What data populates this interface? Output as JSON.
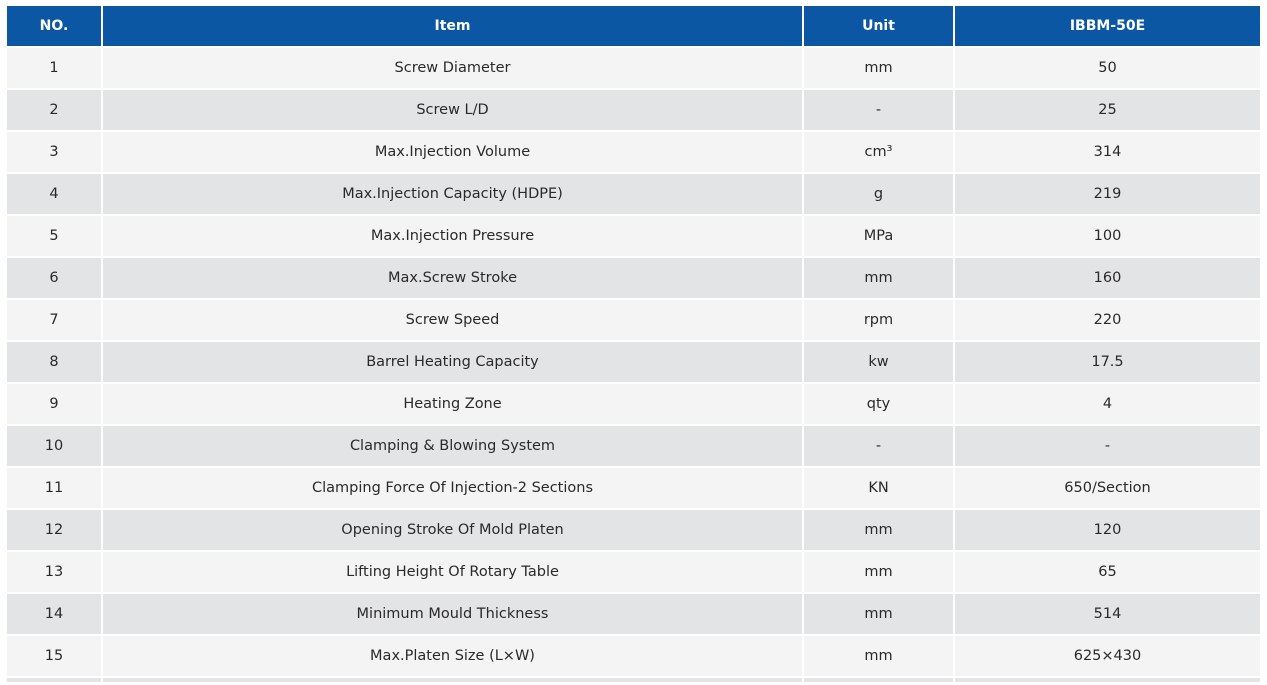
{
  "table": {
    "headers": [
      "NO.",
      "Item",
      "Unit",
      "IBBM-50E"
    ],
    "rows": [
      [
        "1",
        "Screw Diameter",
        "mm",
        "50"
      ],
      [
        "2",
        "Screw L/D",
        "-",
        "25"
      ],
      [
        "3",
        "Max.Injection Volume",
        "cm³",
        "314"
      ],
      [
        "4",
        "Max.Injection Capacity (HDPE)",
        "g",
        "219"
      ],
      [
        "5",
        "Max.Injection Pressure",
        "MPa",
        "100"
      ],
      [
        "6",
        "Max.Screw Stroke",
        "mm",
        "160"
      ],
      [
        "7",
        "Screw Speed",
        "rpm",
        "220"
      ],
      [
        "8",
        "Barrel Heating Capacity",
        "kw",
        "17.5"
      ],
      [
        "9",
        "Heating Zone",
        "qty",
        "4"
      ],
      [
        "10",
        "Clamping & Blowing System",
        "-",
        "-"
      ],
      [
        "11",
        "Clamping Force Of Injection-2 Sections",
        "KN",
        "650/Section"
      ],
      [
        "12",
        "Opening Stroke Of Mold Platen",
        "mm",
        "120"
      ],
      [
        "13",
        "Lifting Height Of Rotary Table",
        "mm",
        "65"
      ],
      [
        "14",
        "Minimum Mould Thickness",
        "mm",
        "514"
      ],
      [
        "15",
        "Max.Platen Size (L×W)",
        "mm",
        "625×430"
      ]
    ]
  },
  "colors": {
    "header_bg": "#0b57a4",
    "row_odd": "#f4f4f5",
    "row_even": "#e3e4e6"
  }
}
